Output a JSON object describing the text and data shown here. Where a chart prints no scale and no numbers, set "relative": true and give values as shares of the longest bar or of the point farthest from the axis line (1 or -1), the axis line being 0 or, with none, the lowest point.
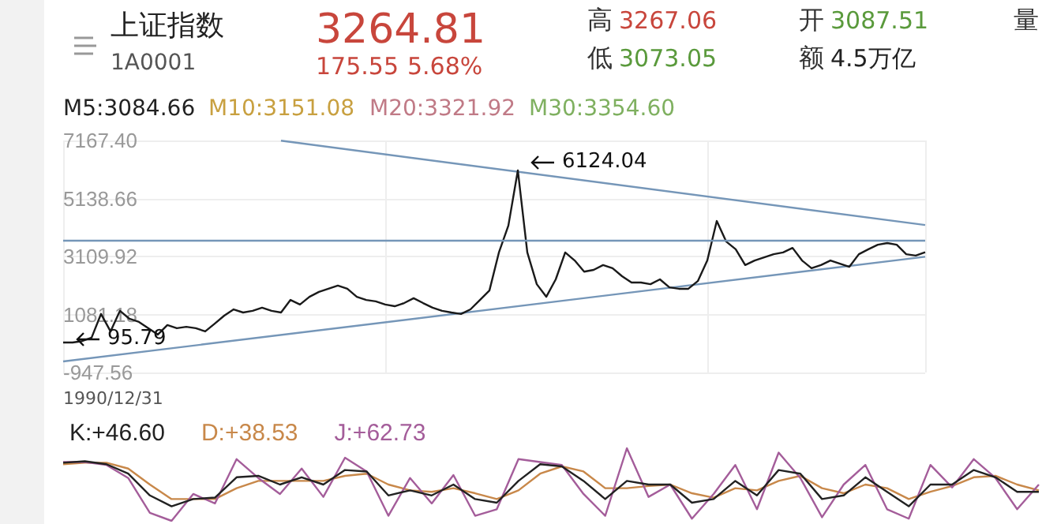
{
  "chart_data": [
    {
      "type": "line",
      "title": "上证指数",
      "subtitle": "1A0001",
      "annotations": [
        "3264.81",
        "175.55",
        "5.68%",
        "高",
        "3267.06",
        "低",
        "3073.05",
        "开",
        "3087.51",
        "额",
        "4.5万亿",
        "量",
        "M5:3084.66",
        "M10:3151.08",
        "M20:3321.92",
        "M30:3354.60",
        "6124.04",
        "95.79",
        "1990/12/31"
      ],
      "categories": [
        null,
        null,
        null,
        null,
        null,
        null,
        null,
        null,
        null,
        null,
        null,
        null,
        null,
        null,
        null,
        null,
        null,
        null,
        null,
        null,
        null,
        null,
        null,
        null,
        null,
        null,
        null,
        null,
        null,
        null,
        null,
        null,
        null,
        null,
        null,
        null,
        null,
        null,
        null,
        null,
        null,
        null,
        null,
        null,
        null,
        null,
        null,
        null,
        null,
        null,
        null,
        null,
        null,
        null,
        null,
        null,
        null,
        null,
        null,
        null,
        null,
        null,
        null,
        null,
        null,
        null,
        null,
        null,
        null,
        null,
        null,
        null,
        null,
        null,
        null,
        null,
        null,
        null,
        null,
        null,
        null,
        null,
        null,
        null,
        null,
        null,
        null,
        null,
        null,
        null,
        null,
        null
      ],
      "series": [
        {
          "color": "#1a1a1a",
          "values": [
            100,
            100,
            150,
            270,
            1100,
            490,
            1210,
            930,
            820,
            600,
            380,
            710,
            600,
            650,
            600,
            490,
            760,
            1040,
            1260,
            1150,
            1210,
            1320,
            1210,
            1150,
            1590,
            1430,
            1700,
            1870,
            1980,
            2090,
            1980,
            1700,
            1590,
            1540,
            1430,
            1370,
            1480,
            1650,
            1480,
            1320,
            1210,
            1150,
            1100,
            1260,
            1590,
            1920,
            3250,
            4190,
            6120,
            3250,
            2140,
            1700,
            2310,
            3250,
            2970,
            2580,
            2640,
            2810,
            2700,
            2420,
            2200,
            2200,
            2140,
            2310,
            2030,
            1980,
            1980,
            2250,
            2970,
            4350,
            3630,
            3360,
            2810,
            2970,
            3080,
            3190,
            3250,
            3410,
            2970,
            2700,
            2810,
            2970,
            2860,
            2750,
            3190,
            3360,
            3520,
            3580,
            3520,
            3190,
            3140,
            3260
          ]
        },
        {
          "color": "#7596b8",
          "values": [
            null,
            null,
            null,
            null,
            null,
            null,
            null,
            null,
            null,
            null,
            null,
            null,
            null,
            null,
            null,
            null,
            null,
            null,
            null,
            null,
            null,
            null,
            null,
            7160,
            null,
            null,
            null,
            null,
            null,
            null,
            null,
            null,
            null,
            null,
            null,
            null,
            null,
            null,
            null,
            null,
            null,
            null,
            null,
            null,
            null,
            null,
            null,
            null,
            null,
            null,
            null,
            null,
            null,
            null,
            null,
            null,
            null,
            null,
            null,
            null,
            null,
            null,
            null,
            null,
            null,
            null,
            null,
            null,
            null,
            null,
            null,
            null,
            null,
            null,
            null,
            null,
            null,
            null,
            null,
            null,
            null,
            null,
            null,
            null,
            null,
            null,
            null,
            null,
            null,
            null,
            null,
            4210
          ]
        },
        {
          "color": "#7596b8",
          "values": [
            -560,
            null,
            null,
            null,
            null,
            null,
            null,
            null,
            null,
            null,
            null,
            null,
            null,
            null,
            null,
            null,
            null,
            null,
            null,
            null,
            null,
            null,
            null,
            null,
            null,
            null,
            null,
            null,
            null,
            null,
            null,
            null,
            null,
            null,
            null,
            null,
            null,
            null,
            null,
            null,
            null,
            null,
            null,
            null,
            null,
            null,
            null,
            null,
            null,
            null,
            null,
            null,
            null,
            null,
            null,
            null,
            null,
            null,
            null,
            null,
            null,
            null,
            null,
            null,
            null,
            null,
            null,
            null,
            null,
            null,
            null,
            null,
            null,
            null,
            null,
            null,
            null,
            null,
            null,
            null,
            null,
            null,
            null,
            null,
            null,
            null,
            null,
            null,
            null,
            null,
            null,
            3100
          ]
        }
      ],
      "ylim": [
        -947.56,
        7167.4
      ],
      "yticks": [
        {
          "value": -947.56,
          "label": "-947.56"
        },
        {
          "value": 1081.18,
          "label": "1081.18"
        },
        {
          "value": 3109.92,
          "label": "3109.92"
        },
        {
          "value": 5138.66,
          "label": "5138.66"
        },
        {
          "value": 7167.4,
          "label": "7167.40"
        }
      ],
      "ref_lines": [
        {
          "axis": "y",
          "value": 3690,
          "color": "#7596b8"
        }
      ],
      "grid": true,
      "tick_labels": "y"
    },
    {
      "type": "line",
      "relative": true,
      "legend": "top left",
      "tick_labels": false,
      "categories": [
        null,
        null,
        null,
        null,
        null,
        null,
        null,
        null,
        null,
        null,
        null,
        null,
        null,
        null,
        null,
        null,
        null,
        null,
        null,
        null,
        null,
        null,
        null,
        null,
        null,
        null,
        null,
        null,
        null,
        null,
        null,
        null,
        null,
        null,
        null,
        null,
        null,
        null,
        null,
        null,
        null,
        null,
        null,
        null,
        null,
        null
      ],
      "series": [
        {
          "name": "K:+46.60",
          "color": "#222222",
          "values": [
            0.8,
            0.82,
            0.78,
            0.65,
            0.35,
            0.2,
            0.3,
            0.32,
            0.6,
            0.62,
            0.5,
            0.6,
            0.5,
            0.7,
            0.68,
            0.35,
            0.42,
            0.35,
            0.5,
            0.3,
            0.25,
            0.55,
            0.78,
            0.75,
            0.55,
            0.3,
            0.55,
            0.5,
            0.5,
            0.25,
            0.3,
            0.55,
            0.35,
            0.7,
            0.65,
            0.3,
            0.35,
            0.6,
            0.4,
            0.2,
            0.5,
            0.5,
            0.7,
            0.6,
            0.4,
            0.4
          ]
        },
        {
          "name": "D:+38.53",
          "color": "#c8884a",
          "values": [
            0.78,
            0.8,
            0.8,
            0.72,
            0.5,
            0.3,
            0.3,
            0.3,
            0.45,
            0.55,
            0.55,
            0.55,
            0.55,
            0.62,
            0.65,
            0.5,
            0.42,
            0.4,
            0.45,
            0.38,
            0.3,
            0.42,
            0.65,
            0.75,
            0.68,
            0.45,
            0.45,
            0.48,
            0.5,
            0.38,
            0.32,
            0.45,
            0.42,
            0.55,
            0.62,
            0.45,
            0.38,
            0.5,
            0.45,
            0.3,
            0.4,
            0.48,
            0.6,
            0.62,
            0.5,
            0.42
          ]
        },
        {
          "name": "J:+62.73",
          "color": "#a45d9a",
          "values": [
            0.81,
            0.81,
            0.77,
            0.59,
            0.11,
            0,
            0.37,
            0.24,
            0.85,
            0.59,
            0.37,
            0.72,
            0.33,
            0.87,
            0.68,
            0.07,
            0.59,
            0.24,
            0.63,
            0.07,
            0.16,
            0.85,
            0.81,
            0.77,
            0.37,
            0.07,
            1,
            0.33,
            0.5,
            0.03,
            0.37,
            0.77,
            0.16,
            0.94,
            0.59,
            0.05,
            0.5,
            0.77,
            0.16,
            0.03,
            0.77,
            0.46,
            0.85,
            0.59,
            0.16,
            0.5
          ]
        }
      ]
    }
  ]
}
